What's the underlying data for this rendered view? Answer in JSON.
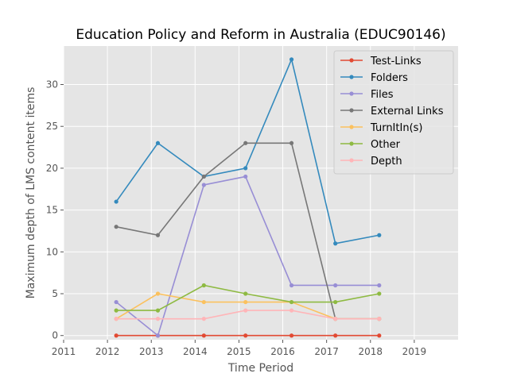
{
  "chart_data": {
    "type": "line",
    "title": "Education Policy and Reform in Australia (EDUC90146)",
    "xlabel": "Time Period",
    "ylabel": "Maximum depth of LMS content items",
    "xlim": [
      2011,
      2020
    ],
    "ylim": [
      -0.5,
      34.6
    ],
    "x_ticks": [
      2011,
      2012,
      2013,
      2014,
      2015,
      2016,
      2017,
      2018,
      2019
    ],
    "y_ticks": [
      0,
      5,
      10,
      15,
      20,
      25,
      30
    ],
    "x": [
      2012.2,
      2013.15,
      2014.2,
      2015.15,
      2016.2,
      2017.2,
      2018.2
    ],
    "grid": true,
    "legend_position": "top-right",
    "series": [
      {
        "name": "Test-Links",
        "color": "#E24A33",
        "values": [
          0,
          0,
          0,
          0,
          0,
          0,
          0
        ]
      },
      {
        "name": "Folders",
        "color": "#348ABD",
        "values": [
          16,
          23,
          19,
          20,
          33,
          11,
          12
        ]
      },
      {
        "name": "Files",
        "color": "#988ED5",
        "values": [
          4,
          0,
          18,
          19,
          6,
          6,
          6
        ]
      },
      {
        "name": "External Links",
        "color": "#777777",
        "values": [
          13,
          12,
          19,
          23,
          23,
          2,
          2
        ]
      },
      {
        "name": "TurnItIn(s)",
        "color": "#FBC15E",
        "values": [
          2,
          5,
          4,
          4,
          4,
          2,
          2
        ]
      },
      {
        "name": "Other",
        "color": "#8EBA42",
        "values": [
          3,
          3,
          6,
          5,
          4,
          4,
          5
        ]
      },
      {
        "name": "Depth",
        "color": "#FFB5B8",
        "values": [
          2,
          2,
          2,
          3,
          3,
          2,
          2
        ]
      }
    ]
  }
}
